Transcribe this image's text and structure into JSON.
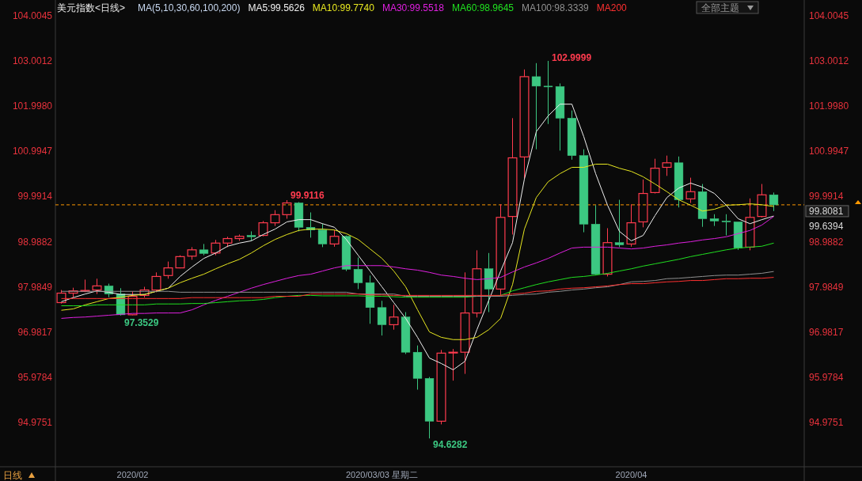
{
  "chart_data": {
    "type": "candlestick",
    "title": "美元指数<日线>",
    "legend_title": "MA(5,10,30,60,100,200)",
    "legend": "top",
    "categories": [
      null,
      null,
      null,
      null,
      null,
      null,
      "2020/02",
      null,
      null,
      null,
      null,
      null,
      null,
      null,
      null,
      null,
      null,
      null,
      null,
      null,
      null,
      null,
      null,
      null,
      null,
      null,
      null,
      "2020/03/03 星期二",
      null,
      null,
      null,
      null,
      null,
      null,
      null,
      null,
      null,
      null,
      null,
      null,
      null,
      null,
      null,
      null,
      null,
      null,
      null,
      null,
      "2020/04",
      null,
      null,
      null,
      null,
      null,
      null,
      null,
      null,
      null,
      null,
      null,
      null
    ],
    "ohlc": [
      [
        97.64,
        97.92,
        97.62,
        97.85
      ],
      [
        97.85,
        97.97,
        97.75,
        97.9
      ],
      [
        97.89,
        98.15,
        97.87,
        97.91
      ],
      [
        97.92,
        98.17,
        97.83,
        98.01
      ],
      [
        98.01,
        98.06,
        97.76,
        97.83
      ],
      [
        97.83,
        97.96,
        97.3529,
        97.37
      ],
      [
        97.37,
        97.89,
        97.36,
        97.78
      ],
      [
        97.8,
        97.99,
        97.75,
        97.92
      ],
      [
        97.92,
        98.31,
        97.87,
        98.22
      ],
      [
        98.24,
        98.55,
        98.17,
        98.41
      ],
      [
        98.41,
        98.69,
        98.4,
        98.66
      ],
      [
        98.67,
        98.87,
        98.59,
        98.81
      ],
      [
        98.81,
        98.94,
        98.69,
        98.73
      ],
      [
        98.74,
        99.03,
        98.69,
        98.96
      ],
      [
        98.96,
        99.1,
        98.87,
        99.06
      ],
      [
        99.06,
        99.15,
        99.01,
        99.11
      ],
      [
        99.13,
        99.22,
        99.01,
        99.1
      ],
      [
        99.13,
        99.45,
        99.11,
        99.41
      ],
      [
        99.41,
        99.69,
        99.34,
        99.59
      ],
      [
        99.59,
        99.9116,
        99.5,
        99.85
      ],
      [
        99.85,
        99.87,
        99.22,
        99.31
      ],
      [
        99.31,
        99.64,
        99.08,
        99.25
      ],
      [
        99.25,
        99.39,
        98.87,
        98.94
      ],
      [
        98.94,
        99.25,
        98.88,
        99.11
      ],
      [
        99.11,
        99.13,
        98.34,
        98.38
      ],
      [
        98.38,
        98.64,
        97.94,
        98.08
      ],
      [
        98.08,
        98.24,
        97.17,
        97.53
      ],
      [
        97.53,
        97.68,
        96.91,
        97.15
      ],
      [
        97.15,
        97.59,
        97.04,
        97.32
      ],
      [
        97.32,
        97.43,
        96.5,
        96.54
      ],
      [
        96.54,
        96.69,
        95.71,
        95.96
      ],
      [
        95.96,
        95.99,
        94.6282,
        95.01
      ],
      [
        95.01,
        96.59,
        94.94,
        96.52
      ],
      [
        96.53,
        96.61,
        95.91,
        96.54
      ],
      [
        96.54,
        98.31,
        96.06,
        97.41
      ],
      [
        97.41,
        98.8,
        97.31,
        98.39
      ],
      [
        98.39,
        98.74,
        97.43,
        97.94
      ],
      [
        97.94,
        99.82,
        97.78,
        99.53
      ],
      [
        99.55,
        101.73,
        99.15,
        100.85
      ],
      [
        100.87,
        102.81,
        100.39,
        102.65
      ],
      [
        102.65,
        102.95,
        101.04,
        102.44
      ],
      [
        102.44,
        102.9999,
        101.6,
        102.43
      ],
      [
        102.43,
        102.5,
        101.01,
        101.73
      ],
      [
        101.73,
        101.9,
        100.81,
        100.9
      ],
      [
        100.9,
        101.04,
        99.2,
        99.38
      ],
      [
        99.38,
        99.8,
        98.25,
        98.27
      ],
      [
        98.27,
        99.29,
        98.22,
        98.97
      ],
      [
        98.97,
        99.92,
        98.87,
        98.92
      ],
      [
        98.94,
        99.82,
        98.88,
        99.41
      ],
      [
        99.43,
        100.37,
        99.31,
        100.06
      ],
      [
        100.08,
        100.83,
        100.06,
        100.62
      ],
      [
        100.64,
        100.9,
        100.45,
        100.74
      ],
      [
        100.74,
        100.88,
        99.75,
        99.92
      ],
      [
        99.94,
        100.41,
        99.85,
        100.1
      ],
      [
        100.1,
        100.27,
        99.32,
        99.5
      ],
      [
        99.5,
        99.6,
        99.34,
        99.45
      ],
      [
        99.45,
        99.6,
        99.13,
        99.43
      ],
      [
        99.43,
        99.43,
        98.81,
        98.85
      ],
      [
        98.87,
        99.95,
        98.8,
        99.53
      ],
      [
        99.55,
        100.27,
        99.53,
        100.03
      ],
      [
        100.03,
        100.08,
        99.67,
        99.8081
      ]
    ],
    "colors": [
      "#ff3b4e",
      "#ff3b4e",
      "#ff3b4e",
      "#ff3b4e",
      "#3cc882",
      "#3cc882",
      "#ff3b4e",
      "#ff3b4e",
      "#ff3b4e",
      "#ff3b4e",
      "#ff3b4e",
      "#ff3b4e",
      "#3cc882",
      "#ff3b4e",
      "#ff3b4e",
      "#ff3b4e",
      "#3cc882",
      "#ff3b4e",
      "#ff3b4e",
      "#ff3b4e",
      "#3cc882",
      "#3cc882",
      "#3cc882",
      "#ff3b4e",
      "#3cc882",
      "#3cc882",
      "#3cc882",
      "#3cc882",
      "#ff3b4e",
      "#3cc882",
      "#3cc882",
      "#3cc882",
      "#ff3b4e",
      "#ff3b4e",
      "#ff3b4e",
      "#ff3b4e",
      "#3cc882",
      "#ff3b4e",
      "#ff3b4e",
      "#ff3b4e",
      "#3cc882",
      "#3cc882",
      "#3cc882",
      "#3cc882",
      "#3cc882",
      "#3cc882",
      "#ff3b4e",
      "#3cc882",
      "#ff3b4e",
      "#ff3b4e",
      "#ff3b4e",
      "#ff3b4e",
      "#3cc882",
      "#ff3b4e",
      "#3cc882",
      "#3cc882",
      "#3cc882",
      "#3cc882",
      "#ff3b4e",
      "#ff3b4e",
      "#3cc882"
    ],
    "series": [
      {
        "name": "MA5:99.5626",
        "type": "line",
        "color": "#f0f0f0",
        "values": [
          97.66,
          97.75,
          97.83,
          97.9,
          97.87,
          97.82,
          97.82,
          97.82,
          97.89,
          97.96,
          98.22,
          98.43,
          98.62,
          98.74,
          98.89,
          98.96,
          99.01,
          99.15,
          99.27,
          99.43,
          99.48,
          99.48,
          99.39,
          99.31,
          99.04,
          98.69,
          98.34,
          97.99,
          97.64,
          97.29,
          96.87,
          96.41,
          96.29,
          96.15,
          96.34,
          97.04,
          97.69,
          98.34,
          98.97,
          100.38,
          101.43,
          101.78,
          102.04,
          102.04,
          101.32,
          100.5,
          99.8,
          99.22,
          99.01,
          99.13,
          99.57,
          99.97,
          100.18,
          100.29,
          100.2,
          100.06,
          99.8,
          99.5,
          99.39,
          99.48,
          99.56
        ]
      },
      {
        "name": "MA10:99.7740",
        "type": "line",
        "color": "#e8e820",
        "values": [
          97.47,
          97.5,
          97.59,
          97.66,
          97.73,
          97.76,
          97.8,
          97.82,
          97.89,
          97.96,
          98.08,
          98.18,
          98.27,
          98.39,
          98.5,
          98.6,
          98.74,
          98.9,
          99.04,
          99.15,
          99.24,
          99.27,
          99.27,
          99.25,
          99.17,
          99.04,
          98.83,
          98.62,
          98.34,
          97.99,
          97.48,
          96.99,
          96.87,
          96.82,
          96.82,
          96.87,
          97.04,
          97.29,
          98.04,
          99.27,
          99.97,
          100.32,
          100.5,
          100.64,
          100.64,
          100.71,
          100.71,
          100.62,
          100.55,
          100.43,
          100.27,
          100.1,
          99.92,
          99.8,
          99.67,
          99.71,
          99.8,
          99.81,
          99.83,
          99.81,
          99.77
        ]
      },
      {
        "name": "MA30:99.5518",
        "type": "line",
        "color": "#e020e0",
        "values": [
          97.29,
          97.31,
          97.32,
          97.34,
          97.36,
          97.38,
          97.4,
          97.4,
          97.41,
          97.41,
          97.41,
          97.48,
          97.59,
          97.69,
          97.78,
          97.87,
          97.96,
          98.04,
          98.11,
          98.18,
          98.24,
          98.27,
          98.34,
          98.41,
          98.46,
          98.46,
          98.46,
          98.46,
          98.43,
          98.39,
          98.36,
          98.31,
          98.25,
          98.22,
          98.18,
          98.15,
          98.17,
          98.2,
          98.32,
          98.43,
          98.52,
          98.62,
          98.74,
          98.85,
          98.87,
          98.87,
          98.87,
          98.85,
          98.83,
          98.85,
          98.89,
          98.92,
          98.96,
          98.99,
          99.03,
          99.06,
          99.1,
          99.17,
          99.24,
          99.36,
          99.55
        ]
      },
      {
        "name": "MA60:98.9645",
        "type": "line",
        "color": "#20e020",
        "values": [
          97.57,
          97.57,
          97.57,
          97.59,
          97.59,
          97.59,
          97.59,
          97.59,
          97.61,
          97.61,
          97.61,
          97.62,
          97.62,
          97.64,
          97.66,
          97.68,
          97.69,
          97.71,
          97.75,
          97.78,
          97.8,
          97.8,
          97.79,
          97.79,
          97.79,
          97.79,
          97.78,
          97.78,
          97.77,
          97.76,
          97.76,
          97.76,
          97.76,
          97.76,
          97.76,
          97.78,
          97.78,
          97.8,
          97.9,
          97.97,
          98.04,
          98.1,
          98.15,
          98.2,
          98.22,
          98.25,
          98.29,
          98.34,
          98.39,
          98.45,
          98.5,
          98.55,
          98.6,
          98.66,
          98.71,
          98.76,
          98.81,
          98.85,
          98.87,
          98.89,
          98.96
        ]
      },
      {
        "name": "MA100:98.3339",
        "type": "line",
        "color": "#909090",
        "values": [
          97.89,
          97.89,
          97.89,
          97.89,
          97.89,
          97.89,
          97.89,
          97.89,
          97.89,
          97.89,
          97.87,
          97.87,
          97.87,
          97.87,
          97.87,
          97.87,
          97.87,
          97.87,
          97.87,
          97.87,
          97.87,
          97.87,
          97.87,
          97.87,
          97.87,
          97.83,
          97.83,
          97.83,
          97.83,
          97.78,
          97.78,
          97.78,
          97.78,
          97.78,
          97.78,
          97.78,
          97.78,
          97.78,
          97.8,
          97.82,
          97.83,
          97.87,
          97.89,
          97.92,
          97.94,
          97.97,
          97.99,
          98.04,
          98.1,
          98.11,
          98.13,
          98.17,
          98.18,
          98.2,
          98.22,
          98.24,
          98.25,
          98.25,
          98.27,
          98.29,
          98.33
        ]
      },
      {
        "name": "MA200",
        "type": "line",
        "color": "#ff3030",
        "values": [
          97.73,
          97.73,
          97.73,
          97.73,
          97.73,
          97.73,
          97.73,
          97.73,
          97.73,
          97.73,
          97.73,
          97.75,
          97.75,
          97.75,
          97.75,
          97.75,
          97.75,
          97.75,
          97.78,
          97.78,
          97.78,
          97.83,
          97.83,
          97.83,
          97.83,
          97.83,
          97.81,
          97.81,
          97.8,
          97.8,
          97.8,
          97.8,
          97.8,
          97.8,
          97.8,
          97.8,
          97.8,
          97.8,
          97.83,
          97.85,
          97.89,
          97.9,
          97.94,
          97.96,
          97.97,
          97.99,
          98.01,
          98.04,
          98.06,
          98.06,
          98.08,
          98.1,
          98.11,
          98.13,
          98.13,
          98.15,
          98.17,
          98.17,
          98.18,
          98.18,
          98.2
        ]
      }
    ],
    "ylim": [
      94.0,
      104.35
    ],
    "yticks": [
      104.0045,
      103.0012,
      {
        "value": 101.998,
        "label": "101.9980"
      },
      100.9947,
      99.9914,
      98.9882,
      97.9849,
      96.9817,
      95.9784,
      94.9751
    ],
    "y2lim": [
      94.0,
      104.35
    ],
    "y2ticks": [
      104.0045,
      103.0012,
      {
        "value": 101.998,
        "label": "101.9980"
      },
      100.9947,
      99.9914,
      98.9882,
      97.9849,
      96.9817,
      95.9784,
      94.9751
    ],
    "ref_lines": [
      {
        "axis": "y2",
        "value": 99.8081,
        "label": "99.8081",
        "color": "#ff9900",
        "line_style": "dashed"
      }
    ],
    "annotations": [
      "全部主题",
      "日线",
      "99.6394",
      "99.9116",
      "97.3529",
      "94.6282",
      "102.9999"
    ]
  }
}
